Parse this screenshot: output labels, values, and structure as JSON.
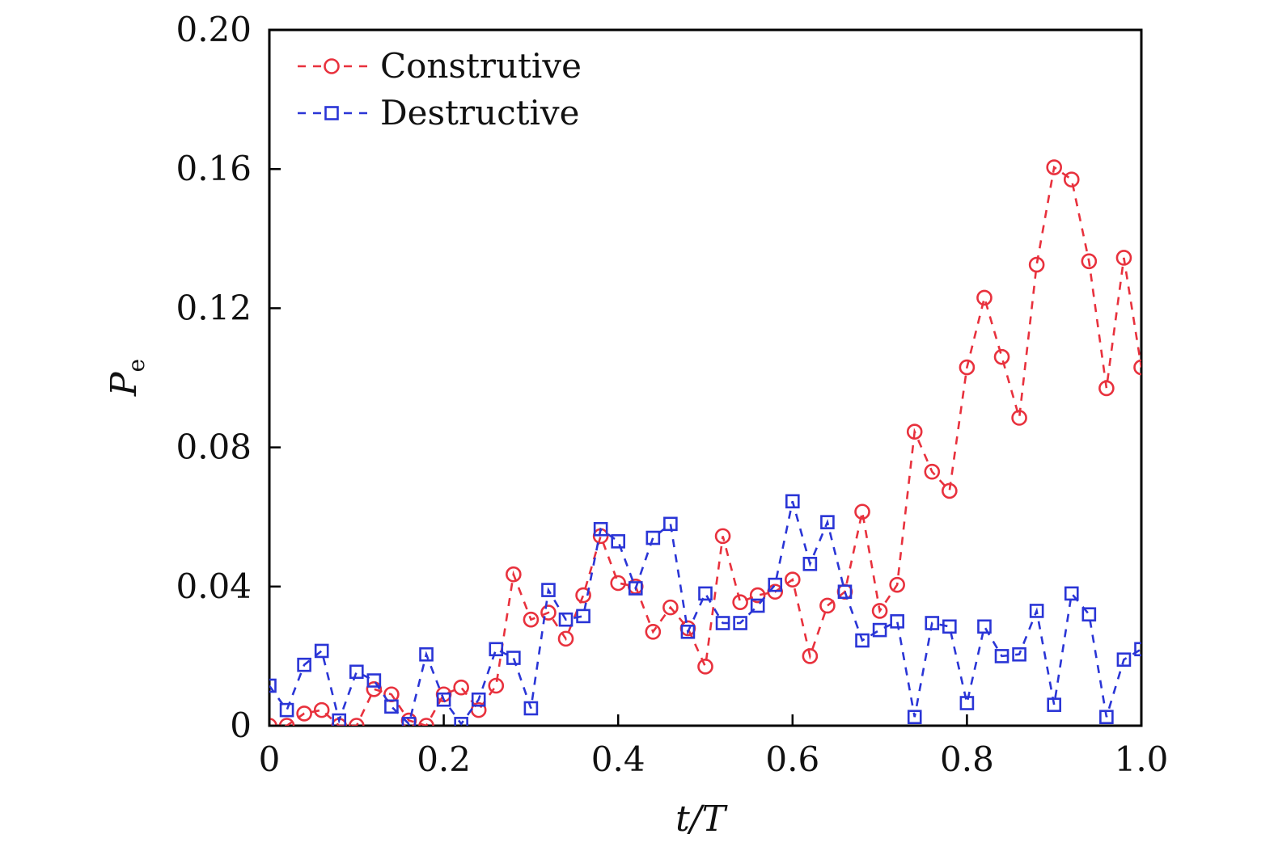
{
  "chart_data": {
    "type": "line",
    "xlabel": "t/T",
    "ylabel": "P",
    "ylabel_subscript": "e",
    "xlim": [
      0,
      1.0
    ],
    "ylim": [
      0,
      0.2
    ],
    "xticks": [
      "0",
      "0.2",
      "0.4",
      "0.6",
      "0.8",
      "1.0"
    ],
    "yticks": [
      "0",
      "0.04",
      "0.08",
      "0.12",
      "0.16",
      "0.20"
    ],
    "legend_position": "top-left",
    "grid": false,
    "x": [
      0,
      0.02,
      0.04,
      0.06,
      0.08,
      0.1,
      0.12,
      0.14,
      0.16,
      0.18,
      0.2,
      0.22,
      0.24,
      0.26,
      0.28,
      0.3,
      0.32,
      0.34,
      0.36,
      0.38,
      0.4,
      0.42,
      0.44,
      0.46,
      0.48,
      0.5,
      0.52,
      0.54,
      0.56,
      0.58,
      0.6,
      0.62,
      0.64,
      0.66,
      0.68,
      0.7,
      0.72,
      0.74,
      0.76,
      0.78,
      0.8,
      0.82,
      0.84,
      0.86,
      0.88,
      0.9,
      0.92,
      0.94,
      0.96,
      0.98,
      1.0
    ],
    "series": [
      {
        "name": "Construtive",
        "color": "#e8313d",
        "marker": "circle",
        "line_style": "dashed",
        "values": [
          0.0,
          0.0,
          0.0035,
          0.0045,
          0.0,
          0.0,
          0.0105,
          0.009,
          0.0015,
          0.0,
          0.009,
          0.011,
          0.0045,
          0.0115,
          0.0435,
          0.0305,
          0.0325,
          0.025,
          0.0375,
          0.0545,
          0.041,
          0.04,
          0.027,
          0.034,
          0.028,
          0.017,
          0.0545,
          0.0355,
          0.0375,
          0.0385,
          0.042,
          0.02,
          0.0345,
          0.0385,
          0.0615,
          0.033,
          0.0405,
          0.0845,
          0.073,
          0.0675,
          0.103,
          0.123,
          0.106,
          0.0885,
          0.1325,
          0.1605,
          0.157,
          0.1335,
          0.097,
          0.1345,
          0.103
        ]
      },
      {
        "name": "Destructive",
        "color": "#2a35d6",
        "marker": "square",
        "line_style": "dashed",
        "values": [
          0.0115,
          0.0045,
          0.0175,
          0.0215,
          0.0015,
          0.0155,
          0.013,
          0.0055,
          0.0005,
          0.0205,
          0.0075,
          0.0005,
          0.0075,
          0.022,
          0.0195,
          0.005,
          0.039,
          0.0305,
          0.0315,
          0.0565,
          0.053,
          0.0395,
          0.054,
          0.058,
          0.027,
          0.038,
          0.0295,
          0.0295,
          0.0345,
          0.0405,
          0.0645,
          0.0465,
          0.0585,
          0.0385,
          0.0245,
          0.0275,
          0.03,
          0.0025,
          0.0295,
          0.0285,
          0.0065,
          0.0285,
          0.02,
          0.0205,
          0.033,
          0.006,
          0.038,
          0.032,
          0.0025,
          0.019,
          0.022
        ]
      }
    ]
  }
}
